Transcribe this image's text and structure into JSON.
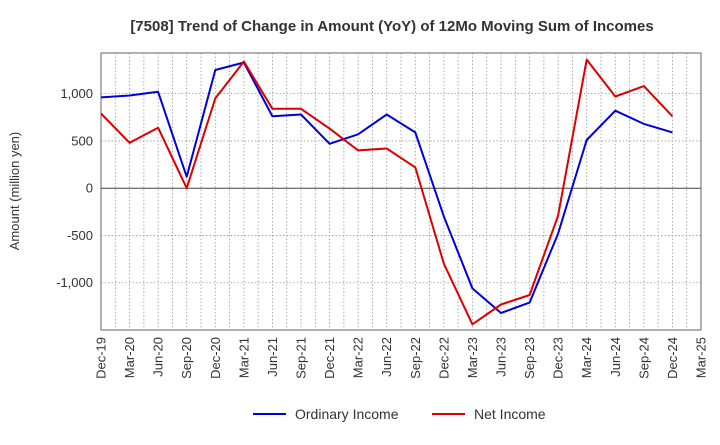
{
  "chart_data": {
    "type": "line",
    "title": "[7508]  Trend of Change in Amount (YoY) of 12Mo Moving Sum of Incomes",
    "ylabel": "Amount (million yen)",
    "xlabel": "",
    "categories": [
      "Dec-19",
      "Mar-20",
      "Jun-20",
      "Sep-20",
      "Dec-20",
      "Mar-21",
      "Jun-21",
      "Sep-21",
      "Dec-21",
      "Mar-22",
      "Jun-22",
      "Sep-22",
      "Dec-22",
      "Mar-23",
      "Jun-23",
      "Sep-23",
      "Dec-23",
      "Mar-24",
      "Jun-24",
      "Sep-24",
      "Dec-24",
      "Mar-25"
    ],
    "series": [
      {
        "name": "Ordinary Income",
        "color": "#0000dd",
        "values": [
          960,
          980,
          1020,
          120,
          1250,
          1330,
          760,
          780,
          470,
          570,
          780,
          590,
          -300,
          -1060,
          -1320,
          -1210,
          -480,
          510,
          820,
          680,
          590,
          null
        ]
      },
      {
        "name": "Net Income",
        "color": "#dd0000",
        "values": [
          790,
          480,
          640,
          0,
          950,
          1340,
          840,
          840,
          630,
          400,
          420,
          220,
          -800,
          -1440,
          -1230,
          -1130,
          -290,
          1360,
          970,
          1080,
          760,
          null
        ]
      }
    ],
    "yticks": [
      -1000,
      -500,
      0,
      500,
      1000
    ],
    "ytick_labels": [
      "-1,000",
      "-500",
      "0",
      "500",
      "1,000"
    ],
    "ylim": [
      -1500,
      1430
    ],
    "grid": true,
    "legend_position": "bottom"
  }
}
